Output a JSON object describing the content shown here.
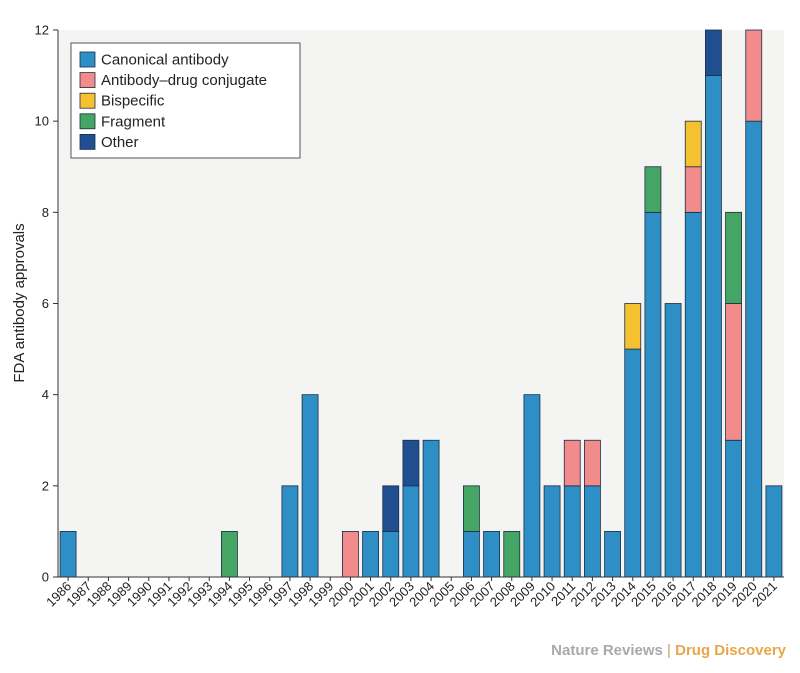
{
  "chart_data": {
    "type": "bar",
    "stacked": true,
    "ylabel": "FDA antibody approvals",
    "xlabel": "",
    "ylim": [
      0,
      12
    ],
    "yticks": [
      0,
      2,
      4,
      6,
      8,
      10,
      12
    ],
    "grid": false,
    "legend_position": "top-left",
    "categories": [
      "1986",
      "1987",
      "1988",
      "1989",
      "1990",
      "1991",
      "1992",
      "1993",
      "1994",
      "1995",
      "1996",
      "1997",
      "1998",
      "1999",
      "2000",
      "2001",
      "2002",
      "2003",
      "2004",
      "2005",
      "2006",
      "2007",
      "2008",
      "2009",
      "2010",
      "2011",
      "2012",
      "2013",
      "2014",
      "2015",
      "2016",
      "2017",
      "2018",
      "2019",
      "2020",
      "2021"
    ],
    "series": [
      {
        "name": "Canonical antibody",
        "color": "#2e8fc6",
        "values": [
          1,
          0,
          0,
          0,
          0,
          0,
          0,
          0,
          0,
          0,
          0,
          2,
          4,
          0,
          0,
          1,
          1,
          2,
          3,
          0,
          1,
          1,
          0,
          4,
          2,
          2,
          2,
          1,
          5,
          8,
          6,
          8,
          11,
          3,
          10,
          2
        ]
      },
      {
        "name": "Antibody–drug conjugate",
        "color": "#f28c8c",
        "values": [
          0,
          0,
          0,
          0,
          0,
          0,
          0,
          0,
          0,
          0,
          0,
          0,
          0,
          0,
          1,
          0,
          0,
          0,
          0,
          0,
          0,
          0,
          0,
          0,
          0,
          1,
          1,
          0,
          0,
          0,
          0,
          1,
          0,
          3,
          2,
          0
        ]
      },
      {
        "name": "Bispecific",
        "color": "#f6c12f",
        "values": [
          0,
          0,
          0,
          0,
          0,
          0,
          0,
          0,
          0,
          0,
          0,
          0,
          0,
          0,
          0,
          0,
          0,
          0,
          0,
          0,
          0,
          0,
          0,
          0,
          0,
          0,
          0,
          0,
          1,
          0,
          0,
          1,
          0,
          0,
          0,
          0
        ]
      },
      {
        "name": "Fragment",
        "color": "#45a565",
        "values": [
          0,
          0,
          0,
          0,
          0,
          0,
          0,
          0,
          1,
          0,
          0,
          0,
          0,
          0,
          0,
          0,
          0,
          0,
          0,
          0,
          1,
          0,
          1,
          0,
          0,
          0,
          0,
          0,
          0,
          1,
          0,
          0,
          0,
          2,
          0,
          0
        ]
      },
      {
        "name": "Other",
        "color": "#1f4f91",
        "values": [
          0,
          0,
          0,
          0,
          0,
          0,
          0,
          0,
          0,
          0,
          0,
          0,
          0,
          0,
          0,
          0,
          1,
          1,
          0,
          0,
          0,
          0,
          0,
          0,
          0,
          0,
          0,
          0,
          0,
          0,
          0,
          0,
          1,
          0,
          0,
          0
        ]
      }
    ]
  },
  "credit": {
    "publisher": "Nature Reviews",
    "separator": "|",
    "journal": "Drug Discovery"
  }
}
